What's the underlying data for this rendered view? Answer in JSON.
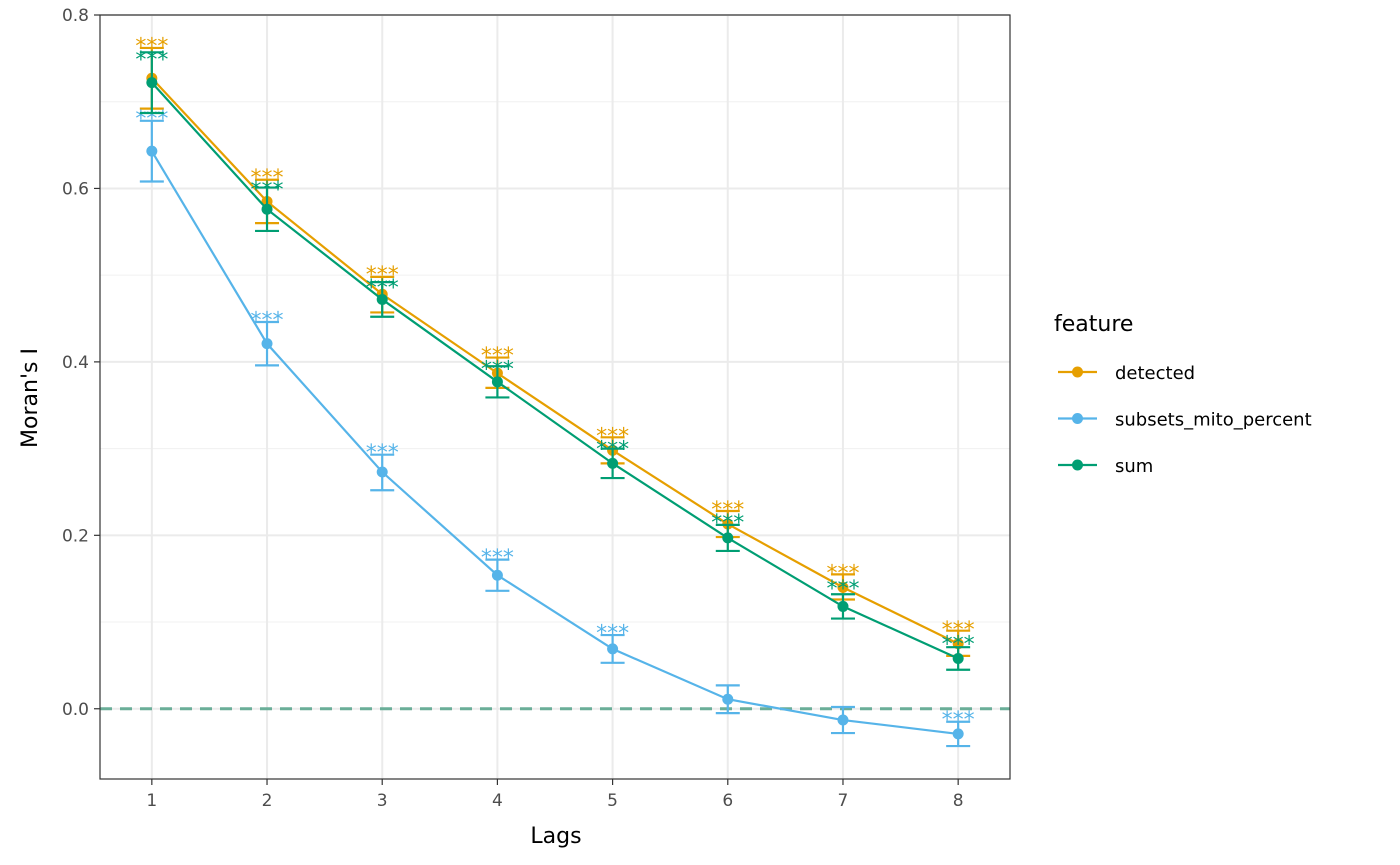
{
  "chart_data": {
    "type": "line",
    "xlabel": "Lags",
    "ylabel": "Moran's I",
    "x": [
      1,
      2,
      3,
      4,
      5,
      6,
      7,
      8
    ],
    "xlim": [
      0.55,
      8.45
    ],
    "ylim": [
      -0.081,
      0.8
    ],
    "yticks": [
      "0.0",
      "0.2",
      "0.4",
      "0.6",
      "0.8"
    ],
    "ytick_values": [
      0.0,
      0.2,
      0.4,
      0.6,
      0.8
    ],
    "xticks": [
      "1",
      "2",
      "3",
      "4",
      "5",
      "6",
      "7",
      "8"
    ],
    "grid": true,
    "reference_line": {
      "y": 0,
      "style": "dashed",
      "color": "#6aae98"
    },
    "legend": {
      "title": "feature",
      "placement": "right"
    },
    "series": [
      {
        "name": "detected",
        "color": "#E69F00",
        "values": [
          0.727,
          0.585,
          0.478,
          0.387,
          0.298,
          0.213,
          0.14,
          0.075
        ],
        "err_low": [
          0.692,
          0.56,
          0.457,
          0.37,
          0.283,
          0.198,
          0.126,
          0.061
        ],
        "err_high": [
          0.762,
          0.61,
          0.498,
          0.405,
          0.313,
          0.228,
          0.155,
          0.09
        ],
        "sig": [
          "***",
          "***",
          "***",
          "***",
          "***",
          "***",
          "***",
          "***"
        ],
        "sig_y": [
          0.772,
          0.62,
          0.508,
          0.415,
          0.322,
          0.237,
          0.164,
          0.099
        ]
      },
      {
        "name": "subsets_mito_percent",
        "color": "#56B4E9",
        "values": [
          0.643,
          0.421,
          0.273,
          0.154,
          0.069,
          0.011,
          -0.013,
          -0.029
        ],
        "err_low": [
          0.608,
          0.396,
          0.252,
          0.136,
          0.053,
          -0.005,
          -0.028,
          -0.043
        ],
        "err_high": [
          0.678,
          0.446,
          0.293,
          0.172,
          0.085,
          0.027,
          0.002,
          -0.015
        ],
        "sig": [
          "***",
          "***",
          "***",
          "***",
          "***",
          "",
          "",
          "***"
        ],
        "sig_y": [
          0.688,
          0.456,
          0.303,
          0.182,
          0.095,
          0,
          0,
          -0.005
        ]
      },
      {
        "name": "sum",
        "color": "#009E73",
        "values": [
          0.722,
          0.576,
          0.472,
          0.377,
          0.283,
          0.197,
          0.118,
          0.058
        ],
        "err_low": [
          0.687,
          0.551,
          0.452,
          0.359,
          0.266,
          0.182,
          0.104,
          0.045
        ],
        "err_high": [
          0.757,
          0.601,
          0.492,
          0.395,
          0.3,
          0.212,
          0.132,
          0.071
        ],
        "sig": [
          "***",
          "***",
          "***",
          "***",
          "***",
          "***",
          "***",
          "***"
        ],
        "sig_y": [
          0.756,
          0.606,
          0.493,
          0.399,
          0.307,
          0.222,
          0.146,
          0.082
        ]
      }
    ]
  }
}
